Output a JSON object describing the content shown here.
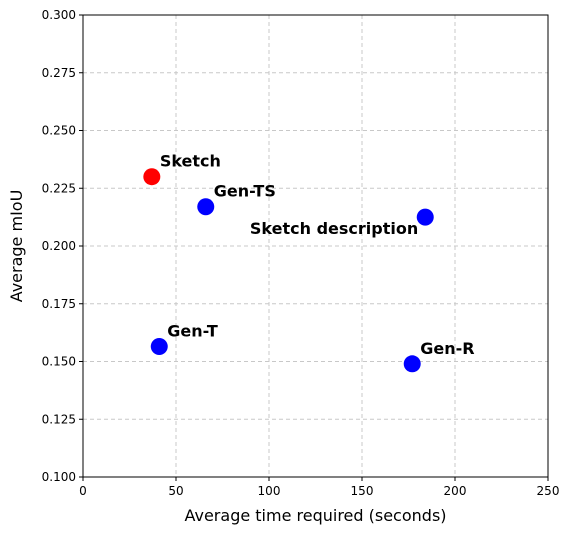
{
  "chart_data": {
    "type": "scatter",
    "title": "",
    "xlabel": "Average time required (seconds)",
    "ylabel": "Average mIoU",
    "xlim": [
      0,
      250
    ],
    "ylim": [
      0.1,
      0.3
    ],
    "xticks": [
      0,
      50,
      100,
      150,
      200,
      250
    ],
    "xtick_labels": [
      "0",
      "50",
      "100",
      "150",
      "200",
      "250"
    ],
    "yticks": [
      0.1,
      0.125,
      0.15,
      0.175,
      0.2,
      0.225,
      0.25,
      0.275,
      0.3
    ],
    "ytick_labels": [
      "0.100",
      "0.125",
      "0.150",
      "0.175",
      "0.200",
      "0.225",
      "0.250",
      "0.275",
      "0.300"
    ],
    "grid": true,
    "points": [
      {
        "label": "Sketch",
        "x": 37,
        "y": 0.23,
        "color": "#ff0000",
        "label_position": "above-right"
      },
      {
        "label": "Gen-TS",
        "x": 66,
        "y": 0.217,
        "color": "#0000ff",
        "label_position": "above-right"
      },
      {
        "label": "Sketch description",
        "x": 184,
        "y": 0.2125,
        "color": "#0000ff",
        "label_position": "below-left"
      },
      {
        "label": "Gen-T",
        "x": 41,
        "y": 0.1565,
        "color": "#0000ff",
        "label_position": "above-right"
      },
      {
        "label": "Gen-R",
        "x": 177,
        "y": 0.149,
        "color": "#0000ff",
        "label_position": "above-right"
      }
    ]
  }
}
